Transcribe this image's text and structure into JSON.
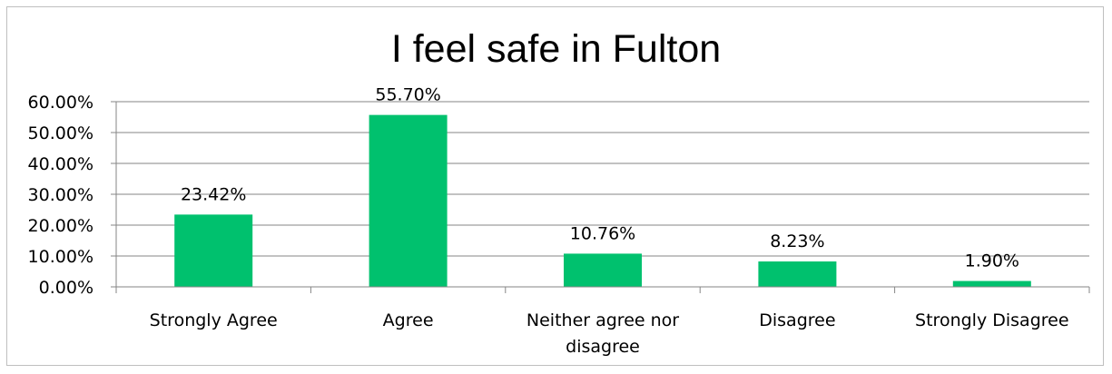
{
  "chart_data": {
    "type": "bar",
    "title": "I feel safe in Fulton",
    "categories": [
      "Strongly Agree",
      "Agree",
      "Neither agree nor disagree",
      "Disagree",
      "Strongly Disagree"
    ],
    "category_lines": [
      [
        "Strongly Agree"
      ],
      [
        "Agree"
      ],
      [
        "Neither agree nor",
        "disagree"
      ],
      [
        "Disagree"
      ],
      [
        "Strongly Disagree"
      ]
    ],
    "values": [
      23.42,
      55.7,
      10.76,
      8.23,
      1.9
    ],
    "data_labels": [
      "23.42%",
      "55.70%",
      "10.76%",
      "8.23%",
      "1.90%"
    ],
    "y_ticks": [
      0,
      10,
      20,
      30,
      40,
      50,
      60
    ],
    "y_tick_labels": [
      "0.00%",
      "10.00%",
      "20.00%",
      "30.00%",
      "40.00%",
      "50.00%",
      "60.00%"
    ],
    "ylim": [
      0,
      60
    ],
    "grid": true,
    "legend": "none",
    "bar_color": "#00c16e"
  }
}
